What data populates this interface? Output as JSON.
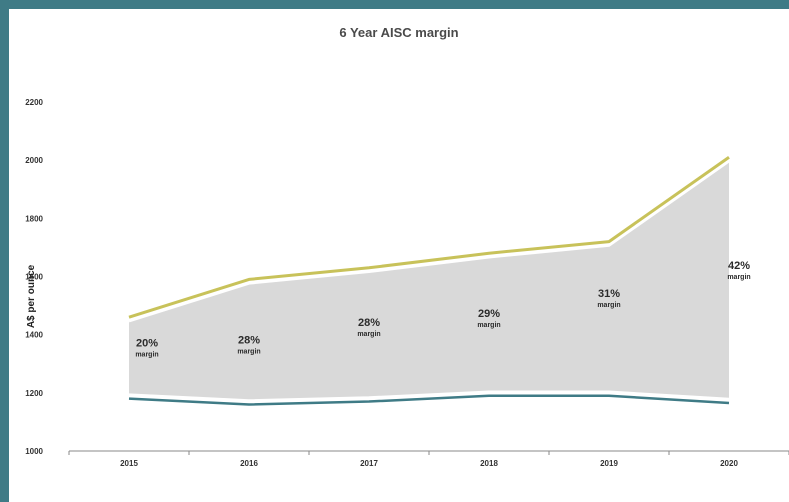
{
  "chart_data": {
    "type": "area",
    "title": "6 Year AISC margin",
    "ylabel": "A$ per ounce",
    "xlabel": "",
    "categories": [
      "2015",
      "2016",
      "2017",
      "2018",
      "2019",
      "2020"
    ],
    "ylim": [
      1000,
      2200
    ],
    "yticks": [
      1000,
      1200,
      1400,
      1600,
      1800,
      2000,
      2200
    ],
    "grid": false,
    "legend": "none",
    "series": [
      {
        "values": [
          1460,
          1590,
          1630,
          1680,
          1720,
          2010
        ],
        "color": "#c8c25a"
      },
      {
        "values": [
          1180,
          1160,
          1170,
          1190,
          1190,
          1165
        ],
        "color": "#3f7b86"
      }
    ],
    "fill_color": "#d9d9d9",
    "annotations": [
      {
        "pct": "20%",
        "word": "margin",
        "x": "2015",
        "y": 1360
      },
      {
        "pct": "28%",
        "word": "margin",
        "x": "2016",
        "y": 1370
      },
      {
        "pct": "28%",
        "word": "margin",
        "x": "2017",
        "y": 1430
      },
      {
        "pct": "29%",
        "word": "margin",
        "x": "2018",
        "y": 1460
      },
      {
        "pct": "31%",
        "word": "margin",
        "x": "2019",
        "y": 1530
      },
      {
        "pct": "42%",
        "word": "margin",
        "x": "2020",
        "y": 1625
      }
    ]
  }
}
